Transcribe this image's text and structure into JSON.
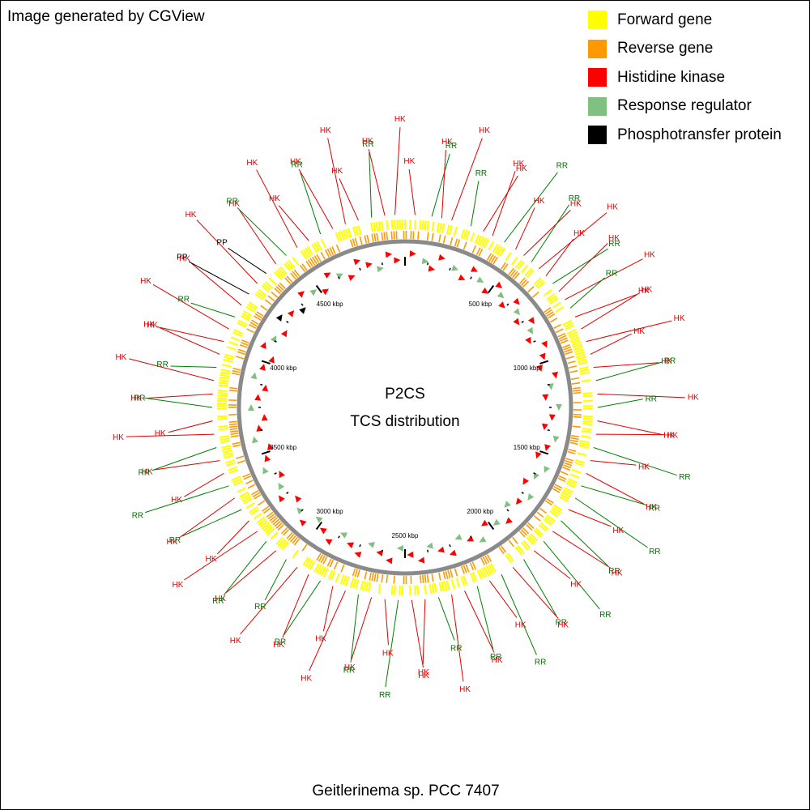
{
  "credit": "Image generated by CGView",
  "legend": [
    {
      "label": "Forward gene",
      "color": "#ffff00"
    },
    {
      "label": "Reverse gene",
      "color": "#ff9900"
    },
    {
      "label": "Histidine kinase",
      "color": "#ff0000"
    },
    {
      "label": "Response regulator",
      "color": "#80c080"
    },
    {
      "label": "Phosphotransfer protein",
      "color": "#000000"
    }
  ],
  "center": {
    "line1": "P2CS",
    "line2": "TCS distribution"
  },
  "organism": "Geitlerinema sp. PCC 7407",
  "genome": {
    "tick_labels": [
      "500 kbp",
      "1000 kbp",
      "1500 kbp",
      "2000 kbp",
      "2500 kbp",
      "3000 kbp",
      "3500 kbp",
      "4000 kbp",
      "4500 kbp"
    ]
  },
  "feature_labels": [
    "HK",
    "RR",
    "PP"
  ],
  "features": [
    {
      "label": "HK",
      "angle": 3
    },
    {
      "label": "RR",
      "angle": 8
    },
    {
      "label": "HK",
      "angle": 11
    },
    {
      "label": "HK",
      "angle": 14
    },
    {
      "label": "RR",
      "angle": 20
    },
    {
      "label": "HK",
      "angle": 24
    },
    {
      "label": "HK",
      "angle": 27
    },
    {
      "label": "RR",
      "angle": 31
    },
    {
      "label": "HK",
      "angle": 35
    },
    {
      "label": "HK",
      "angle": 38
    },
    {
      "label": "RR",
      "angle": 41
    },
    {
      "label": "HK",
      "angle": 44
    },
    {
      "label": "HK",
      "angle": 47
    },
    {
      "label": "RR",
      "angle": 50
    },
    {
      "label": "HK",
      "angle": 53
    },
    {
      "label": "HK",
      "angle": 56
    },
    {
      "label": "RR",
      "angle": 59
    },
    {
      "label": "HK",
      "angle": 62
    },
    {
      "label": "HK",
      "angle": 66
    },
    {
      "label": "HK",
      "angle": 70
    },
    {
      "label": "HK",
      "angle": 74
    },
    {
      "label": "HK",
      "angle": 78
    },
    {
      "label": "RR",
      "angle": 82
    },
    {
      "label": "HK",
      "angle": 86
    },
    {
      "label": "RR",
      "angle": 90
    },
    {
      "label": "HK",
      "angle": 94
    },
    {
      "label": "HK",
      "angle": 98
    },
    {
      "label": "RR",
      "angle": 102
    },
    {
      "label": "HK",
      "angle": 106
    },
    {
      "label": "HK",
      "angle": 110
    },
    {
      "label": "RR",
      "angle": 114
    },
    {
      "label": "RR",
      "angle": 118
    },
    {
      "label": "HK",
      "angle": 122
    },
    {
      "label": "RR",
      "angle": 126
    },
    {
      "label": "HK",
      "angle": 130
    },
    {
      "label": "RR",
      "angle": 134
    },
    {
      "label": "HK",
      "angle": 138
    },
    {
      "label": "RR",
      "angle": 142
    },
    {
      "label": "HK",
      "angle": 146
    },
    {
      "label": "RR",
      "angle": 150
    },
    {
      "label": "HK",
      "angle": 154
    },
    {
      "label": "RR",
      "angle": 158
    },
    {
      "label": "HK",
      "angle": 162
    },
    {
      "label": "HK",
      "angle": 166
    },
    {
      "label": "RR",
      "angle": 170
    },
    {
      "label": "HK",
      "angle": 174
    },
    {
      "label": "HK",
      "angle": 178
    },
    {
      "label": "RR",
      "angle": 182
    },
    {
      "label": "HK",
      "angle": 186
    },
    {
      "label": "HK",
      "angle": 190
    },
    {
      "label": "RR",
      "angle": 194
    },
    {
      "label": "HK",
      "angle": 198
    },
    {
      "label": "HK",
      "angle": 202
    },
    {
      "label": "RR",
      "angle": 206
    },
    {
      "label": "HK",
      "angle": 210
    },
    {
      "label": "HK",
      "angle": 214
    },
    {
      "label": "RR",
      "angle": 218
    },
    {
      "label": "HK",
      "angle": 222
    },
    {
      "label": "RR",
      "angle": 226
    },
    {
      "label": "HK",
      "angle": 230
    },
    {
      "label": "HK",
      "angle": 234
    },
    {
      "label": "RR",
      "angle": 238
    },
    {
      "label": "HK",
      "angle": 242
    },
    {
      "label": "RR",
      "angle": 246
    },
    {
      "label": "HK",
      "angle": 250
    },
    {
      "label": "HK",
      "angle": 254
    },
    {
      "label": "RR",
      "angle": 258
    },
    {
      "label": "HK",
      "angle": 262
    },
    {
      "label": "HK",
      "angle": 266
    },
    {
      "label": "RR",
      "angle": 270
    },
    {
      "label": "HK",
      "angle": 274
    },
    {
      "label": "HK",
      "angle": 278
    },
    {
      "label": "RR",
      "angle": 282
    },
    {
      "label": "HK",
      "angle": 286
    },
    {
      "label": "HK",
      "angle": 290
    },
    {
      "label": "HK",
      "angle": 294
    },
    {
      "label": "RR",
      "angle": 298
    },
    {
      "label": "HK",
      "angle": 302
    },
    {
      "label": "PP",
      "angle": 306
    },
    {
      "label": "HK",
      "angle": 310
    },
    {
      "label": "PP",
      "angle": 314
    },
    {
      "label": "HK",
      "angle": 318
    },
    {
      "label": "RR",
      "angle": 322
    },
    {
      "label": "HK",
      "angle": 326
    },
    {
      "label": "HK",
      "angle": 330
    },
    {
      "label": "RR",
      "angle": 334
    },
    {
      "label": "HK",
      "angle": 338
    },
    {
      "label": "HK",
      "angle": 342
    },
    {
      "label": "HK",
      "angle": 346
    },
    {
      "label": "RR",
      "angle": 350
    },
    {
      "label": "HK",
      "angle": 354
    },
    {
      "label": "HK",
      "angle": 357
    }
  ]
}
